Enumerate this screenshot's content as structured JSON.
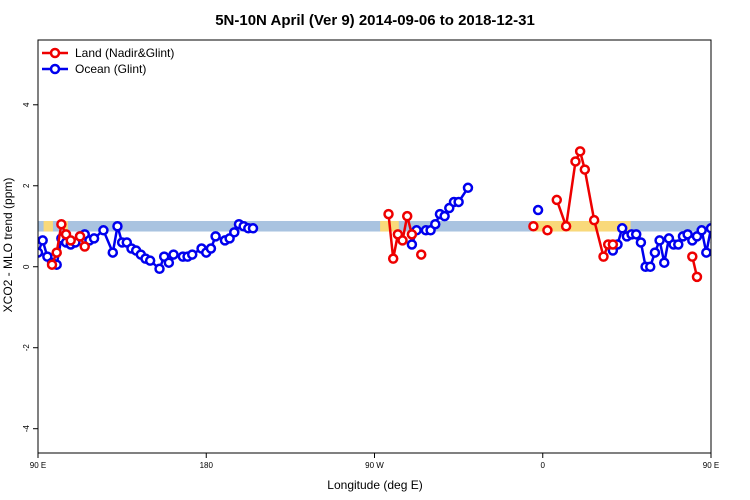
{
  "chart_data": {
    "type": "line",
    "title": "5N-10N April (Ver 9)   2014-09-06 to 2018-12-31",
    "xlabel": "Longitude (deg E)",
    "ylabel": "XCO2 - MLO trend (ppm)",
    "xlim": [
      90,
      450
    ],
    "ylim": [
      -4.6,
      5.6
    ],
    "x_ticks": [
      {
        "value": 90,
        "label": "90 E"
      },
      {
        "value": 180,
        "label": "180"
      },
      {
        "value": 270,
        "label": "90 W"
      },
      {
        "value": 360,
        "label": "0"
      },
      {
        "value": 450,
        "label": "90 E"
      },
      {
        "value": 540,
        "label": "180"
      }
    ],
    "y_ticks": [
      -4,
      -2,
      0,
      2,
      4
    ],
    "grid": false,
    "legend_position": "top-left",
    "band": {
      "y_low": 0.87,
      "y_high": 1.13,
      "color": "#a9c3e0",
      "land_color": "#f9d97a",
      "land_segments": [
        [
          93,
          98
        ],
        [
          104,
          106
        ],
        [
          273,
          283
        ],
        [
          355,
          407
        ],
        [
          462,
          463
        ],
        [
          475,
          477
        ],
        [
          490,
          492
        ]
      ]
    },
    "series": [
      {
        "name": "Land (Nadir&Glint)",
        "color": "#ee0000",
        "segments": [
          [
            [
              97.5,
              0.05
            ],
            [
              100,
              0.35
            ],
            [
              102.5,
              1.05
            ],
            [
              105,
              0.8
            ],
            [
              107.5,
              0.65
            ]
          ],
          [
            [
              112.5,
              0.75
            ],
            [
              115,
              0.5
            ]
          ],
          [
            [
              277.5,
              1.3
            ],
            [
              280,
              0.2
            ],
            [
              282.5,
              0.8
            ],
            [
              285,
              0.65
            ],
            [
              287.5,
              1.25
            ],
            [
              290,
              0.8
            ]
          ],
          [
            [
              295,
              0.3
            ]
          ],
          [
            [
              355,
              1.0
            ]
          ],
          [
            [
              362.5,
              0.9
            ]
          ],
          [
            [
              367.5,
              1.65
            ],
            [
              372.5,
              1.0
            ],
            [
              377.5,
              2.6
            ],
            [
              380,
              2.85
            ],
            [
              382.5,
              2.4
            ],
            [
              387.5,
              1.15
            ],
            [
              392.5,
              0.25
            ],
            [
              395,
              0.55
            ],
            [
              397.5,
              0.55
            ]
          ],
          [
            [
              440,
              0.25
            ],
            [
              442.5,
              -0.25
            ]
          ],
          [
            [
              455,
              0.0
            ],
            [
              457.5,
              0.8
            ],
            [
              460,
              1.05
            ]
          ],
          [
            [
              477.5,
              0.6
            ],
            [
              480,
              0.5
            ]
          ]
        ]
      },
      {
        "name": "Ocean (Glint)",
        "color": "#0000ee",
        "segments": [
          [
            [
              90,
              0.35
            ],
            [
              92.5,
              0.65
            ],
            [
              95,
              0.25
            ],
            [
              97.5,
              0.1
            ],
            [
              100,
              0.05
            ],
            [
              102.5,
              0.7
            ],
            [
              105,
              0.6
            ],
            [
              107.5,
              0.55
            ],
            [
              110,
              0.6
            ],
            [
              112.5,
              0.75
            ],
            [
              115,
              0.8
            ],
            [
              117.5,
              0.65
            ],
            [
              120,
              0.7
            ],
            [
              125,
              0.9
            ],
            [
              130,
              0.35
            ],
            [
              132.5,
              1.0
            ],
            [
              135,
              0.6
            ],
            [
              137.5,
              0.6
            ],
            [
              140,
              0.45
            ],
            [
              142.5,
              0.4
            ],
            [
              145,
              0.3
            ],
            [
              147.5,
              0.2
            ],
            [
              150,
              0.15
            ],
            [
              155,
              -0.05
            ],
            [
              157.5,
              0.25
            ],
            [
              160,
              0.1
            ],
            [
              162.5,
              0.3
            ],
            [
              167.5,
              0.25
            ],
            [
              170,
              0.25
            ],
            [
              172.5,
              0.3
            ],
            [
              177.5,
              0.45
            ],
            [
              180,
              0.35
            ],
            [
              182.5,
              0.45
            ],
            [
              185,
              0.75
            ],
            [
              190,
              0.65
            ],
            [
              192.5,
              0.7
            ],
            [
              195,
              0.85
            ],
            [
              197.5,
              1.05
            ],
            [
              200,
              1.0
            ],
            [
              202.5,
              0.95
            ],
            [
              205,
              0.95
            ]
          ],
          [
            [
              290,
              0.55
            ],
            [
              292.5,
              0.9
            ],
            [
              297.5,
              0.9
            ],
            [
              300,
              0.9
            ],
            [
              302.5,
              1.05
            ],
            [
              305,
              1.3
            ],
            [
              307.5,
              1.25
            ],
            [
              310,
              1.45
            ],
            [
              312.5,
              1.6
            ],
            [
              315,
              1.6
            ],
            [
              320,
              1.95
            ]
          ],
          [
            [
              357.5,
              1.4
            ]
          ],
          [
            [
              397.5,
              0.4
            ],
            [
              400,
              0.55
            ],
            [
              402.5,
              0.95
            ],
            [
              405,
              0.75
            ],
            [
              407.5,
              0.8
            ],
            [
              410,
              0.8
            ],
            [
              412.5,
              0.6
            ],
            [
              415,
              0.0
            ],
            [
              417.5,
              0.0
            ],
            [
              420,
              0.35
            ],
            [
              422.5,
              0.65
            ],
            [
              425,
              0.1
            ],
            [
              427.5,
              0.7
            ],
            [
              430,
              0.55
            ],
            [
              432.5,
              0.55
            ],
            [
              435,
              0.75
            ],
            [
              437.5,
              0.8
            ],
            [
              440,
              0.65
            ],
            [
              442.5,
              0.75
            ],
            [
              445,
              0.9
            ],
            [
              447.5,
              0.35
            ],
            [
              450,
              0.95
            ],
            [
              452.5,
              0.6
            ],
            [
              455,
              0.6
            ],
            [
              457.5,
              0.45
            ],
            [
              460,
              0.4
            ],
            [
              462.5,
              0.3
            ]
          ]
        ]
      }
    ]
  }
}
